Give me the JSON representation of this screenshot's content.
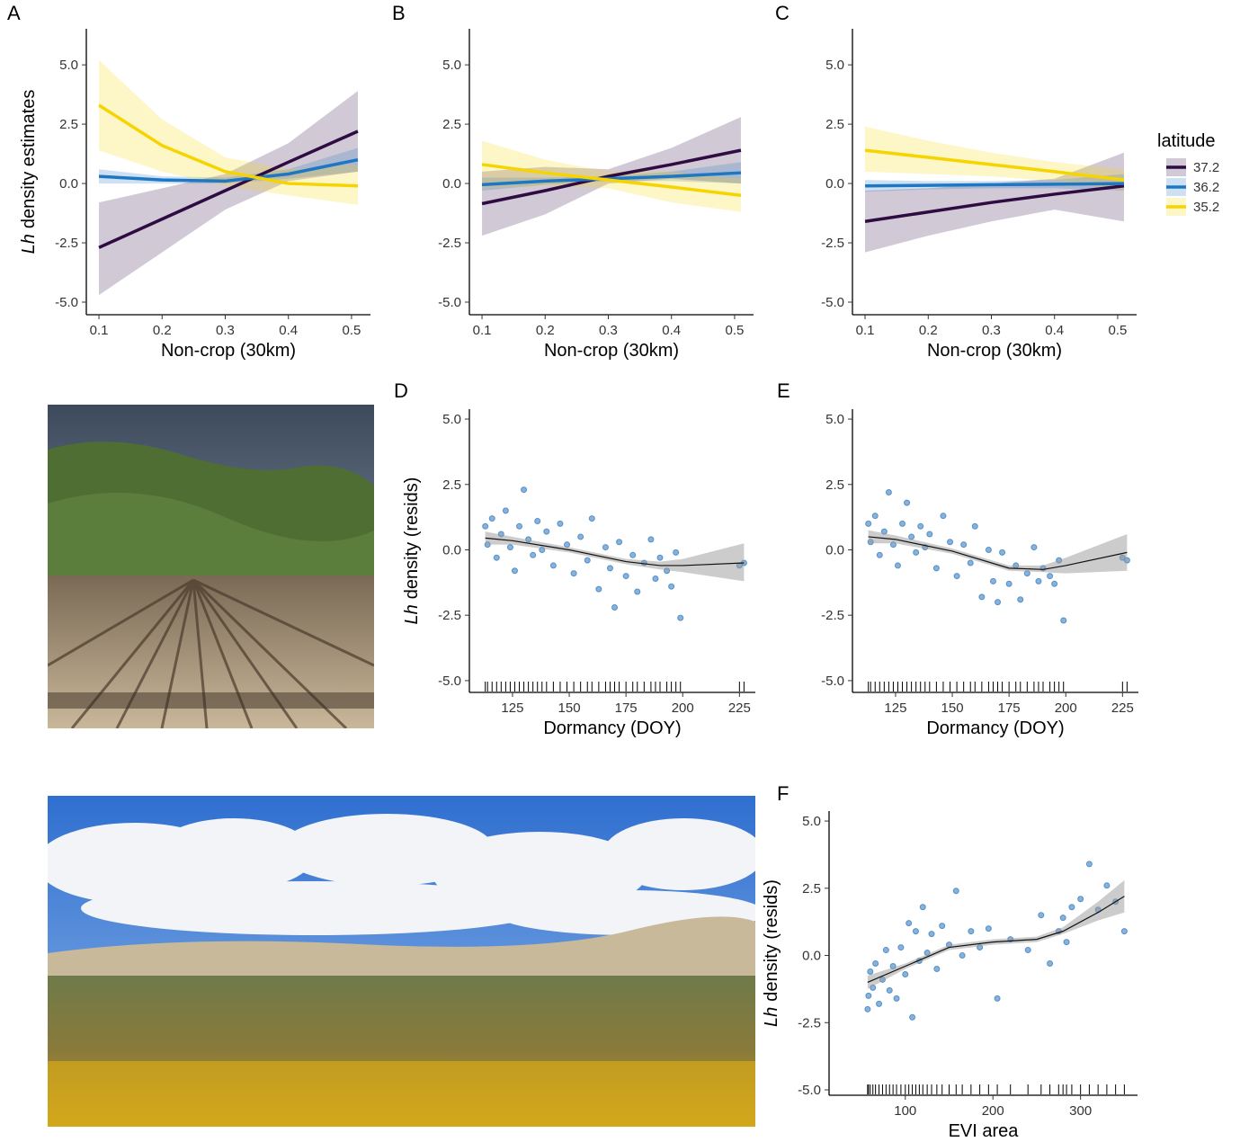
{
  "chart_data": [
    {
      "type": "line",
      "panel": "A",
      "xlabel": "Non-crop (30km)",
      "ylabel_italic": "Lh",
      "ylabel": "density estimates",
      "xlim": [
        0.08,
        0.53
      ],
      "ylim": [
        -5.53,
        6.52
      ],
      "xticks": [
        0.1,
        0.2,
        0.3,
        0.4,
        0.5
      ],
      "yticks": [
        {
          "value": -5,
          "label": "-5.0"
        },
        -2.5,
        {
          "value": 0,
          "label": "0.0"
        },
        2.5,
        {
          "value": 5,
          "label": "5.0"
        }
      ],
      "x": [
        0.1,
        0.2,
        0.3,
        0.4,
        0.51
      ],
      "series": [
        {
          "color": "#2e0b42",
          "values": [
            -2.7,
            -1.5,
            -0.3,
            0.9,
            2.2
          ],
          "lower": [
            -4.7,
            -2.9,
            -1.1,
            0.1,
            0.5
          ],
          "upper": [
            -0.8,
            -0.2,
            0.4,
            1.7,
            3.9
          ]
        },
        {
          "color": "#1f77c4",
          "values": [
            0.3,
            0.15,
            0.1,
            0.4,
            1.0
          ],
          "lower": [
            0.0,
            0.0,
            0.0,
            0.2,
            0.5
          ],
          "upper": [
            0.6,
            0.3,
            0.25,
            0.6,
            1.5
          ]
        },
        {
          "color": "#f5d400",
          "values": [
            3.3,
            1.6,
            0.5,
            0.0,
            -0.1
          ],
          "lower": [
            1.4,
            0.5,
            -0.1,
            -0.5,
            -0.9
          ],
          "upper": [
            5.2,
            2.7,
            1.1,
            0.6,
            0.8
          ]
        }
      ]
    },
    {
      "type": "line",
      "panel": "B",
      "xlabel": "Non-crop (30km)",
      "xlim": [
        0.08,
        0.53
      ],
      "ylim": [
        -5.53,
        6.52
      ],
      "xticks": [
        0.1,
        0.2,
        0.3,
        0.4,
        0.5
      ],
      "yticks": [
        {
          "value": -5,
          "label": "-5.0"
        },
        -2.5,
        {
          "value": 0,
          "label": "0.0"
        },
        2.5,
        {
          "value": 5,
          "label": "5.0"
        }
      ],
      "x": [
        0.1,
        0.2,
        0.3,
        0.4,
        0.51
      ],
      "series": [
        {
          "color": "#2e0b42",
          "values": [
            -0.85,
            -0.3,
            0.3,
            0.8,
            1.4
          ],
          "lower": [
            -2.2,
            -1.3,
            0.0,
            0.2,
            0.0
          ],
          "upper": [
            0.5,
            0.7,
            0.6,
            1.5,
            2.8
          ]
        },
        {
          "color": "#1f77c4",
          "values": [
            -0.05,
            0.1,
            0.2,
            0.3,
            0.45
          ],
          "lower": [
            -0.3,
            -0.05,
            0.1,
            0.1,
            0.0
          ],
          "upper": [
            0.25,
            0.25,
            0.3,
            0.5,
            0.9
          ]
        },
        {
          "color": "#f5d400",
          "values": [
            0.8,
            0.45,
            0.15,
            -0.15,
            -0.5
          ],
          "lower": [
            -0.2,
            -0.1,
            -0.2,
            -0.8,
            -1.2
          ],
          "upper": [
            1.8,
            1.0,
            0.5,
            0.5,
            0.2
          ]
        }
      ]
    },
    {
      "type": "line",
      "panel": "C",
      "xlabel": "Non-crop (30km)",
      "legend_title": "latitude",
      "xlim": [
        0.08,
        0.53
      ],
      "ylim": [
        -5.53,
        6.52
      ],
      "xticks": [
        0.1,
        0.2,
        0.3,
        0.4,
        0.5
      ],
      "yticks": [
        {
          "value": -5,
          "label": "-5.0"
        },
        -2.5,
        {
          "value": 0,
          "label": "0.0"
        },
        2.5,
        {
          "value": 5,
          "label": "5.0"
        }
      ],
      "x": [
        0.1,
        0.2,
        0.3,
        0.4,
        0.51
      ],
      "series": [
        {
          "name": "37.2",
          "color": "#2e0b42",
          "values": [
            -1.6,
            -1.2,
            -0.8,
            -0.45,
            -0.1
          ],
          "lower": [
            -2.9,
            -2.2,
            -1.6,
            -1.1,
            -1.6
          ],
          "upper": [
            -0.3,
            -0.2,
            0.0,
            0.2,
            1.3
          ]
        },
        {
          "name": "36.2",
          "color": "#1f77c4",
          "values": [
            -0.1,
            -0.08,
            -0.05,
            -0.03,
            0.0
          ],
          "lower": [
            -0.35,
            -0.25,
            -0.2,
            -0.2,
            -0.3
          ],
          "upper": [
            0.15,
            0.1,
            0.1,
            0.15,
            0.4
          ]
        },
        {
          "name": "35.2",
          "color": "#f5d400",
          "values": [
            1.4,
            1.1,
            0.8,
            0.5,
            0.15
          ],
          "lower": [
            0.5,
            0.4,
            0.3,
            0.1,
            -0.3
          ],
          "upper": [
            2.4,
            1.8,
            1.3,
            0.9,
            0.6
          ]
        }
      ]
    },
    {
      "type": "scatter",
      "panel": "D",
      "xlabel": "Dormancy (DOY)",
      "ylabel_italic": "Lh",
      "ylabel": "density (resids)",
      "xlim": [
        106,
        232
      ],
      "ylim": [
        -5.45,
        5.38
      ],
      "xticks": [
        125,
        150,
        175,
        200,
        225
      ],
      "yticks": [
        {
          "value": -5,
          "label": "-5.0"
        },
        -2.5,
        {
          "value": 0,
          "label": "0.0"
        },
        2.5,
        {
          "value": 5,
          "label": "5.0"
        }
      ],
      "point_color": "#3a7fc1",
      "smooth_color": "#111111",
      "band_color": "#9a9a9a",
      "points": {
        "x": [
          113,
          114,
          116,
          118,
          120,
          122,
          124,
          126,
          128,
          130,
          132,
          134,
          136,
          138,
          140,
          143,
          146,
          149,
          152,
          155,
          158,
          160,
          163,
          166,
          168,
          170,
          172,
          175,
          178,
          180,
          183,
          186,
          188,
          190,
          193,
          195,
          197,
          199,
          225,
          227
        ],
        "y": [
          0.9,
          0.2,
          1.2,
          -0.3,
          0.6,
          1.5,
          0.1,
          -0.8,
          0.9,
          2.3,
          0.4,
          -0.2,
          1.1,
          0.0,
          0.7,
          -0.6,
          1.0,
          0.2,
          -0.9,
          0.5,
          -0.4,
          1.2,
          -1.5,
          0.1,
          -0.7,
          -2.2,
          0.3,
          -1.0,
          -0.2,
          -1.6,
          -0.5,
          0.4,
          -1.1,
          -0.3,
          -0.8,
          -1.4,
          -0.1,
          -2.6,
          -0.6,
          -0.5
        ]
      },
      "smooth": {
        "x": [
          113,
          125,
          150,
          175,
          190,
          200,
          227
        ],
        "values": [
          0.45,
          0.35,
          0.0,
          -0.45,
          -0.6,
          -0.6,
          -0.5
        ],
        "lower": [
          0.2,
          0.2,
          -0.1,
          -0.55,
          -0.75,
          -0.85,
          -1.2
        ],
        "upper": [
          0.7,
          0.5,
          0.1,
          -0.35,
          -0.45,
          -0.35,
          0.25
        ]
      }
    },
    {
      "type": "scatter",
      "panel": "E",
      "xlabel": "Dormancy (DOY)",
      "xlim": [
        106,
        232
      ],
      "ylim": [
        -5.45,
        5.38
      ],
      "xticks": [
        125,
        150,
        175,
        200,
        225
      ],
      "yticks": [
        {
          "value": -5,
          "label": "-5.0"
        },
        -2.5,
        {
          "value": 0,
          "label": "0.0"
        },
        2.5,
        {
          "value": 5,
          "label": "5.0"
        }
      ],
      "point_color": "#3a7fc1",
      "smooth_color": "#111111",
      "band_color": "#9a9a9a",
      "points": {
        "x": [
          113,
          114,
          116,
          118,
          120,
          122,
          124,
          126,
          128,
          130,
          132,
          134,
          136,
          138,
          140,
          143,
          146,
          149,
          152,
          155,
          158,
          160,
          163,
          166,
          168,
          170,
          172,
          175,
          178,
          180,
          183,
          186,
          188,
          190,
          193,
          195,
          197,
          199,
          225,
          227
        ],
        "y": [
          1.0,
          0.3,
          1.3,
          -0.2,
          0.7,
          2.2,
          0.2,
          -0.6,
          1.0,
          1.8,
          0.5,
          -0.1,
          0.9,
          0.1,
          0.6,
          -0.7,
          1.3,
          0.3,
          -1.0,
          0.2,
          -0.5,
          0.9,
          -1.8,
          0.0,
          -1.2,
          -2.0,
          -0.1,
          -1.3,
          -0.6,
          -1.9,
          -0.9,
          0.1,
          -1.2,
          -0.7,
          -1.0,
          -1.3,
          -0.4,
          -2.7,
          -0.3,
          -0.4
        ]
      },
      "smooth": {
        "x": [
          113,
          125,
          150,
          175,
          190,
          200,
          227
        ],
        "values": [
          0.5,
          0.4,
          -0.05,
          -0.7,
          -0.75,
          -0.6,
          -0.1
        ],
        "lower": [
          0.25,
          0.25,
          -0.15,
          -0.8,
          -0.85,
          -0.9,
          -0.8
        ],
        "upper": [
          0.75,
          0.55,
          0.05,
          -0.6,
          -0.6,
          -0.3,
          0.6
        ]
      }
    },
    {
      "type": "scatter",
      "panel": "F",
      "xlabel": "EVI area",
      "ylabel_italic": "Lh",
      "ylabel": "density (resids)",
      "xlim": [
        13,
        365
      ],
      "ylim": [
        -5.2,
        5.37
      ],
      "xticks": [
        100,
        200,
        300
      ],
      "yticks": [
        {
          "value": -5,
          "label": "-5.0"
        },
        -2.5,
        {
          "value": 0,
          "label": "0.0"
        },
        2.5,
        {
          "value": 5,
          "label": "5.0"
        }
      ],
      "point_color": "#3a7fc1",
      "smooth_color": "#111111",
      "band_color": "#9a9a9a",
      "points": {
        "x": [
          57,
          58,
          60,
          63,
          66,
          70,
          74,
          78,
          82,
          86,
          90,
          95,
          100,
          104,
          108,
          112,
          116,
          120,
          125,
          130,
          136,
          142,
          150,
          158,
          165,
          175,
          185,
          195,
          205,
          220,
          240,
          255,
          265,
          275,
          280,
          284,
          290,
          300,
          310,
          320,
          330,
          340,
          350
        ],
        "y": [
          -2.0,
          -1.5,
          -0.6,
          -1.2,
          -0.3,
          -1.8,
          -0.9,
          0.2,
          -1.3,
          -0.4,
          -1.6,
          0.3,
          -0.7,
          1.2,
          -2.3,
          0.9,
          -0.2,
          1.8,
          0.1,
          0.8,
          -0.5,
          1.1,
          0.4,
          2.4,
          0.0,
          0.9,
          0.3,
          1.0,
          -1.6,
          0.6,
          0.2,
          1.5,
          -0.3,
          0.9,
          1.4,
          0.5,
          1.8,
          2.1,
          3.4,
          1.7,
          2.6,
          2.0,
          0.9
        ]
      },
      "smooth": {
        "x": [
          57,
          100,
          150,
          200,
          250,
          280,
          320,
          350
        ],
        "values": [
          -1.0,
          -0.4,
          0.3,
          0.5,
          0.6,
          0.9,
          1.6,
          2.2
        ],
        "lower": [
          -1.25,
          -0.5,
          0.2,
          0.4,
          0.5,
          0.8,
          1.3,
          1.6
        ],
        "upper": [
          -0.75,
          -0.3,
          0.4,
          0.6,
          0.7,
          1.05,
          2.0,
          2.8
        ]
      }
    }
  ]
}
